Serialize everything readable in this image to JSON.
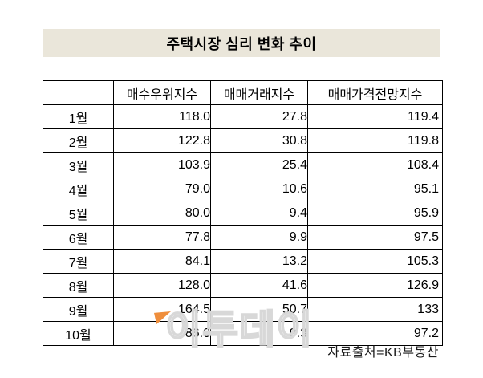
{
  "title": "주택시장 심리 변화 추이",
  "table": {
    "columns": [
      "",
      "매수우위지수",
      "매매거래지수",
      "매매가격전망지수"
    ],
    "rows": [
      {
        "month": "1월",
        "values": [
          "118.0",
          "27.8",
          "119.4"
        ]
      },
      {
        "month": "2월",
        "values": [
          "122.8",
          "30.8",
          "119.8"
        ]
      },
      {
        "month": "3월",
        "values": [
          "103.9",
          "25.4",
          "108.4"
        ]
      },
      {
        "month": "4월",
        "values": [
          "79.0",
          "10.6",
          "95.1"
        ]
      },
      {
        "month": "5월",
        "values": [
          "80.0",
          "9.4",
          "95.9"
        ]
      },
      {
        "month": "6월",
        "values": [
          "77.8",
          "9.9",
          "97.5"
        ]
      },
      {
        "month": "7월",
        "values": [
          "84.1",
          "13.2",
          "105.3"
        ]
      },
      {
        "month": "8월",
        "values": [
          "128.0",
          "41.6",
          "126.9"
        ]
      },
      {
        "month": "9월",
        "values": [
          "164.5",
          "50.7",
          "133"
        ]
      },
      {
        "month": "10월",
        "values": [
          "86.0",
          "9.3",
          "97.2"
        ]
      }
    ]
  },
  "source": "자료출처=KB부동산",
  "watermark": {
    "text": "이투데이",
    "icon": "orange-flag-icon"
  },
  "colors": {
    "title_bg": "#eae6da",
    "border": "#000000",
    "watermark_outline": "#d8d8d8",
    "accent_orange": "#ef8e3c"
  },
  "chart_data": {
    "type": "table",
    "title": "주택시장 심리 변화 추이",
    "categories": [
      "1월",
      "2월",
      "3월",
      "4월",
      "5월",
      "6월",
      "7월",
      "8월",
      "9월",
      "10월"
    ],
    "series": [
      {
        "name": "매수우위지수",
        "values": [
          118.0,
          122.8,
          103.9,
          79.0,
          80.0,
          77.8,
          84.1,
          128.0,
          164.5,
          86.0
        ]
      },
      {
        "name": "매매거래지수",
        "values": [
          27.8,
          30.8,
          25.4,
          10.6,
          9.4,
          9.9,
          13.2,
          41.6,
          50.7,
          9.3
        ]
      },
      {
        "name": "매매가격전망지수",
        "values": [
          119.4,
          119.8,
          108.4,
          95.1,
          95.9,
          97.5,
          105.3,
          126.9,
          133,
          97.2
        ]
      }
    ],
    "source": "자료출처=KB부동산",
    "legend_position": "header-row",
    "grid": true
  }
}
